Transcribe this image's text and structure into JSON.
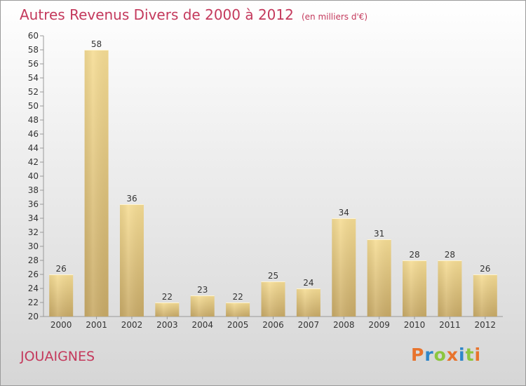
{
  "header": {
    "title": "Autres Revenus Divers de 2000 à 2012",
    "unit": "(en milliers d'€)"
  },
  "footer": {
    "commune": "JOUAIGNES",
    "brand": "Proxiti"
  },
  "colors": {
    "accent": "#c4395c",
    "bar_light": "#f6dd95",
    "bar_dark": "#c9ab68",
    "brand_letters": [
      "#e8732c",
      "#2e86c9",
      "#8cc63f",
      "#e8732c",
      "#2e86c9",
      "#8cc63f",
      "#e8732c"
    ]
  },
  "chart_data": {
    "type": "bar",
    "title": "Autres Revenus Divers de 2000 à 2012",
    "subtitle": "(en milliers d'€)",
    "categories": [
      "2000",
      "2001",
      "2002",
      "2003",
      "2004",
      "2005",
      "2006",
      "2007",
      "2008",
      "2009",
      "2010",
      "2011",
      "2012"
    ],
    "values": [
      26,
      58,
      36,
      22,
      23,
      22,
      25,
      24,
      34,
      31,
      28,
      28,
      26
    ],
    "ylim": [
      20,
      60
    ],
    "ytick_step": 2,
    "grid": false,
    "xlabel": "",
    "ylabel": ""
  }
}
